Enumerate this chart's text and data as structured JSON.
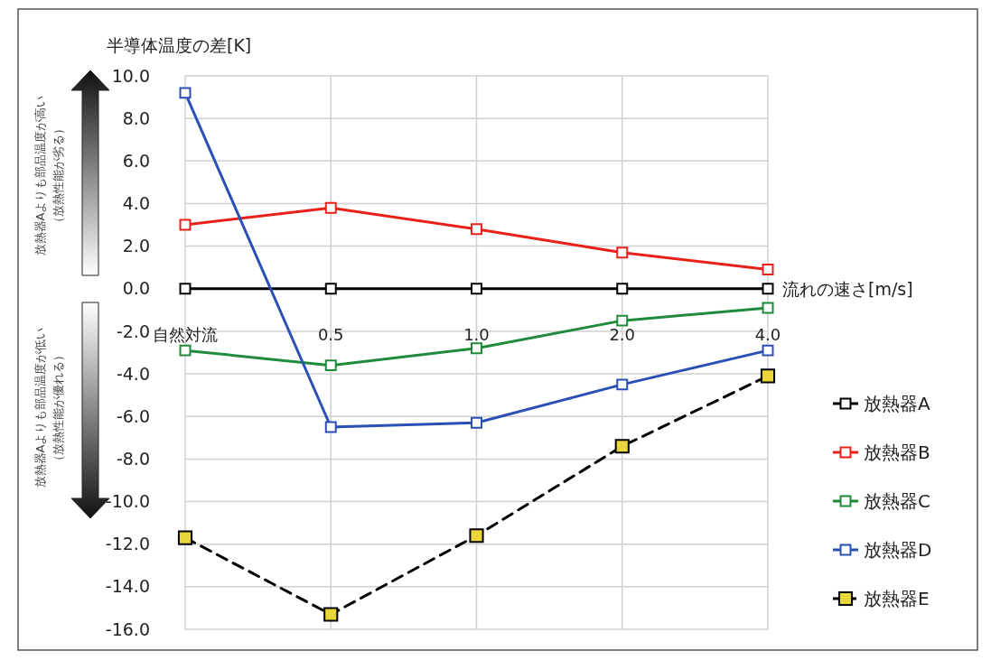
{
  "chart_data": {
    "type": "line",
    "ylabel": "半導体温度の差[K]",
    "xlabel": "流れの速さ[m/s]",
    "categories": [
      "自然対流",
      "0.5",
      "1.0",
      "2.0",
      "4.0"
    ],
    "series": [
      {
        "name": "放熱器A",
        "color": "#000000",
        "values": [
          0,
          0,
          0,
          0,
          0
        ]
      },
      {
        "name": "放熱器B",
        "color": "#e8221b",
        "values": [
          3.0,
          3.8,
          2.8,
          1.7,
          0.9
        ]
      },
      {
        "name": "放熱器C",
        "color": "#1e8a3a",
        "values": [
          -2.9,
          -3.6,
          -2.8,
          -1.5,
          -0.9
        ]
      },
      {
        "name": "放熱器D",
        "color": "#2a4fb5",
        "values": [
          9.2,
          -6.5,
          -6.3,
          -4.5,
          -2.9
        ]
      },
      {
        "name": "放熱器E",
        "color": "#e8d63a",
        "values": [
          -11.7,
          -15.3,
          -11.6,
          -7.4,
          -4.1
        ],
        "line_style": "dashed"
      }
    ],
    "ylim": [
      -16,
      10
    ],
    "yticks": [
      {
        "value": 10,
        "label": "10.0"
      },
      {
        "value": 8,
        "label": "8.0"
      },
      {
        "value": 6,
        "label": "6.0"
      },
      {
        "value": 4,
        "label": "4.0"
      },
      {
        "value": 2,
        "label": "2.0"
      },
      {
        "value": 0,
        "label": "0.0"
      },
      {
        "value": -2,
        "label": "-2.0"
      },
      {
        "value": -4,
        "label": "-4.0"
      },
      {
        "value": -6,
        "label": "-6.0"
      },
      {
        "value": -8,
        "label": "-8.0"
      },
      {
        "value": -10,
        "label": "-10.0"
      },
      {
        "value": -12,
        "label": "-12.0"
      },
      {
        "value": -14,
        "label": "-14.0"
      },
      {
        "value": -16,
        "label": "-16.0"
      }
    ],
    "grid": true,
    "legend": "right",
    "marker": "square",
    "line_style": "solid",
    "annotations": [
      "放熱器Aよりも部品温度が高い",
      "（放熱性能が劣る）",
      "放熱器Aよりも部品温度が低い",
      "（放熱性能が優れる）"
    ]
  }
}
